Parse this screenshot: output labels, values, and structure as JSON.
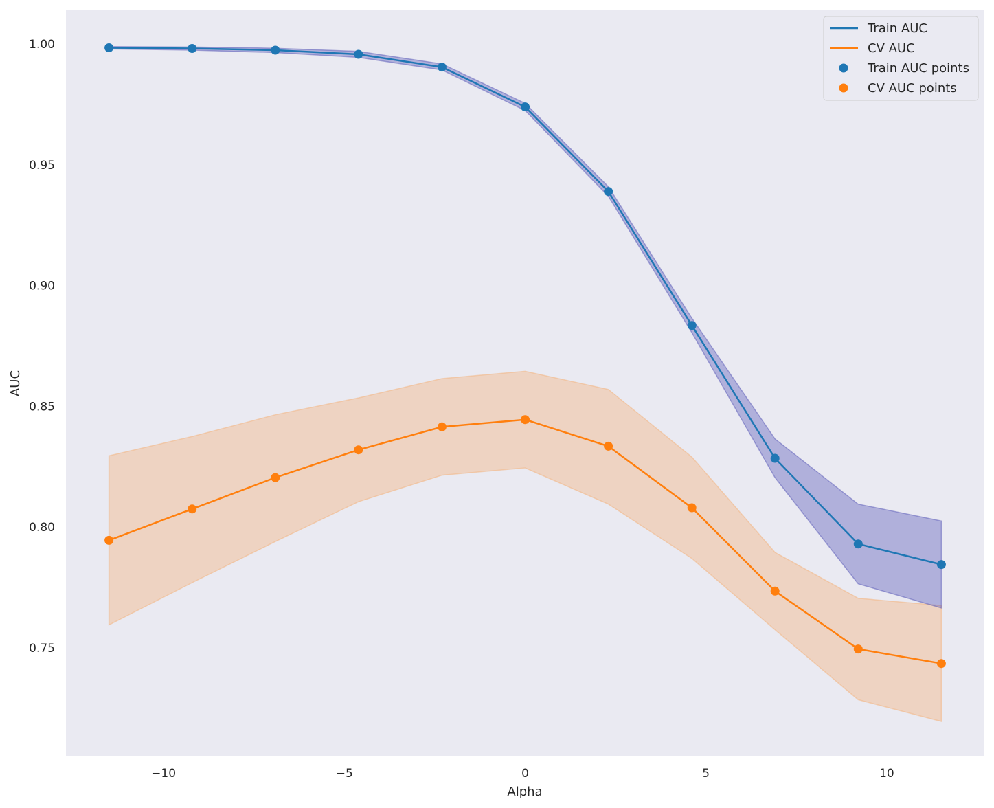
{
  "chart_data": {
    "type": "line",
    "title": "",
    "xlabel": "Alpha",
    "ylabel": "AUC",
    "xlim": [
      -12.7,
      12.7
    ],
    "ylim": [
      0.705,
      1.014
    ],
    "grid": false,
    "background": "#eaeaf2",
    "legend_position": "top-right",
    "x": [
      -11.51,
      -9.21,
      -6.91,
      -4.61,
      -2.3,
      0.0,
      2.3,
      4.61,
      6.91,
      9.21,
      11.51
    ],
    "x_ticks": [
      {
        "value": -10,
        "label": "−10"
      },
      {
        "value": -5,
        "label": "−5"
      },
      {
        "value": 0,
        "label": "0"
      },
      {
        "value": 5,
        "label": "5"
      },
      {
        "value": 10,
        "label": "10"
      }
    ],
    "y_ticks": [
      {
        "value": 0.75,
        "label": "0.75"
      },
      {
        "value": 0.8,
        "label": "0.80"
      },
      {
        "value": 0.85,
        "label": "0.85"
      },
      {
        "value": 0.9,
        "label": "0.90"
      },
      {
        "value": 0.95,
        "label": "0.95"
      },
      {
        "value": 1.0,
        "label": "1.00"
      }
    ],
    "series": [
      {
        "name": "Train AUC",
        "color": "#1f77b4",
        "band_color": "#5a5ab8",
        "values": [
          0.9985,
          0.9982,
          0.9975,
          0.9958,
          0.9905,
          0.974,
          0.939,
          0.8835,
          0.8285,
          0.793,
          0.7845
        ],
        "lower": [
          0.998,
          0.9975,
          0.9965,
          0.9945,
          0.9893,
          0.9725,
          0.937,
          0.8805,
          0.8205,
          0.7765,
          0.7665
        ],
        "upper": [
          0.999,
          0.9988,
          0.9983,
          0.997,
          0.9918,
          0.9755,
          0.941,
          0.8865,
          0.8365,
          0.8095,
          0.8025
        ]
      },
      {
        "name": "CV AUC",
        "color": "#ff7f0e",
        "band_color": "#f4b27a",
        "values": [
          0.7945,
          0.8075,
          0.8205,
          0.832,
          0.8415,
          0.8445,
          0.8335,
          0.808,
          0.7735,
          0.7495,
          0.7435
        ],
        "lower": [
          0.7595,
          0.777,
          0.794,
          0.8105,
          0.8215,
          0.8245,
          0.8095,
          0.787,
          0.7575,
          0.7285,
          0.7195
        ],
        "upper": [
          0.8295,
          0.8375,
          0.8465,
          0.8535,
          0.8615,
          0.8645,
          0.857,
          0.829,
          0.7895,
          0.7705,
          0.7675
        ]
      }
    ],
    "legend": [
      {
        "label": "Train AUC",
        "kind": "line",
        "color": "#1f77b4"
      },
      {
        "label": "CV AUC",
        "kind": "line",
        "color": "#ff7f0e"
      },
      {
        "label": "Train AUC points",
        "kind": "marker",
        "color": "#1f77b4"
      },
      {
        "label": "CV AUC points",
        "kind": "marker",
        "color": "#ff7f0e"
      }
    ]
  }
}
